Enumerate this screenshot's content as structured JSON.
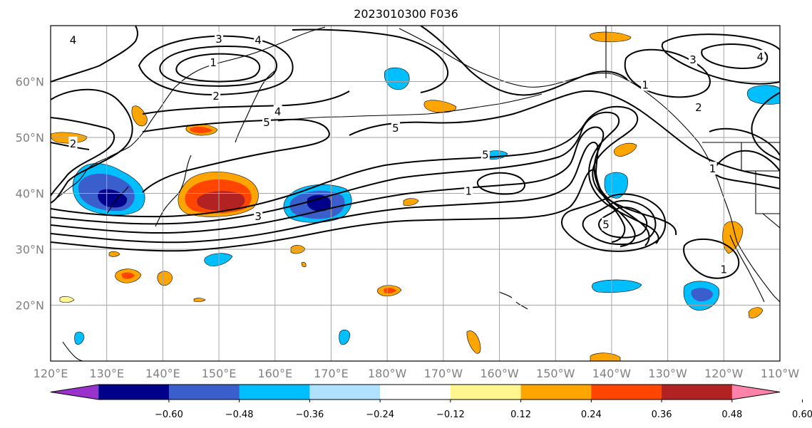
{
  "title": "2023010300 F036",
  "map": {
    "lon_range": [
      120,
      250
    ],
    "lat_range": [
      10,
      70
    ],
    "grid": true,
    "lon_ticks": [
      "120°E",
      "130°E",
      "140°E",
      "150°E",
      "160°E",
      "170°E",
      "180°W",
      "170°W",
      "160°W",
      "150°W",
      "140°W",
      "130°W",
      "120°W",
      "110°W"
    ],
    "lat_ticks": [
      {
        "lat": 60,
        "label": "60°N"
      },
      {
        "lat": 50,
        "label": "50°N"
      },
      {
        "lat": 40,
        "label": "40°N"
      },
      {
        "lat": 30,
        "label": "30°N"
      },
      {
        "lat": 20,
        "label": "20°N"
      }
    ],
    "contour_labels": [
      {
        "text": "4",
        "lon": 124,
        "lat": 67.5
      },
      {
        "text": "3",
        "lon": 150,
        "lat": 67.7
      },
      {
        "text": "4",
        "lon": 157,
        "lat": 67.5
      },
      {
        "text": "1",
        "lon": 149,
        "lat": 63.5
      },
      {
        "text": "2",
        "lon": 149.5,
        "lat": 57.5
      },
      {
        "text": "4",
        "lon": 160.5,
        "lat": 54.7
      },
      {
        "text": "5",
        "lon": 158.5,
        "lat": 52.8
      },
      {
        "text": "5",
        "lon": 181.5,
        "lat": 51.8
      },
      {
        "text": "2",
        "lon": 124,
        "lat": 49
      },
      {
        "text": "5",
        "lon": 197.5,
        "lat": 47
      },
      {
        "text": "1",
        "lon": 194.5,
        "lat": 40.5
      },
      {
        "text": "3",
        "lon": 157,
        "lat": 36
      },
      {
        "text": "5",
        "lon": 219,
        "lat": 34.5
      },
      {
        "text": "1",
        "lon": 226,
        "lat": 59.5
      },
      {
        "text": "3",
        "lon": 234.5,
        "lat": 64
      },
      {
        "text": "4",
        "lon": 246.5,
        "lat": 64.5
      },
      {
        "text": "2",
        "lon": 235.5,
        "lat": 55.5
      },
      {
        "text": "1",
        "lon": 238,
        "lat": 44.5
      },
      {
        "text": "1",
        "lon": 240,
        "lat": 26.5
      }
    ]
  },
  "colorbar": {
    "colors": [
      "#9932cc",
      "#00008b",
      "#3a5fcd",
      "#00bfff",
      "#b0e2ff",
      "#ffffff",
      "#fff68f",
      "#ffa500",
      "#ff4500",
      "#b22222",
      "#ff82ab"
    ],
    "tick_labels": [
      "−0.60",
      "−0.48",
      "−0.36",
      "−0.24",
      "−0.12",
      "0.12",
      "0.24",
      "0.36",
      "0.48",
      "0.60"
    ]
  }
}
